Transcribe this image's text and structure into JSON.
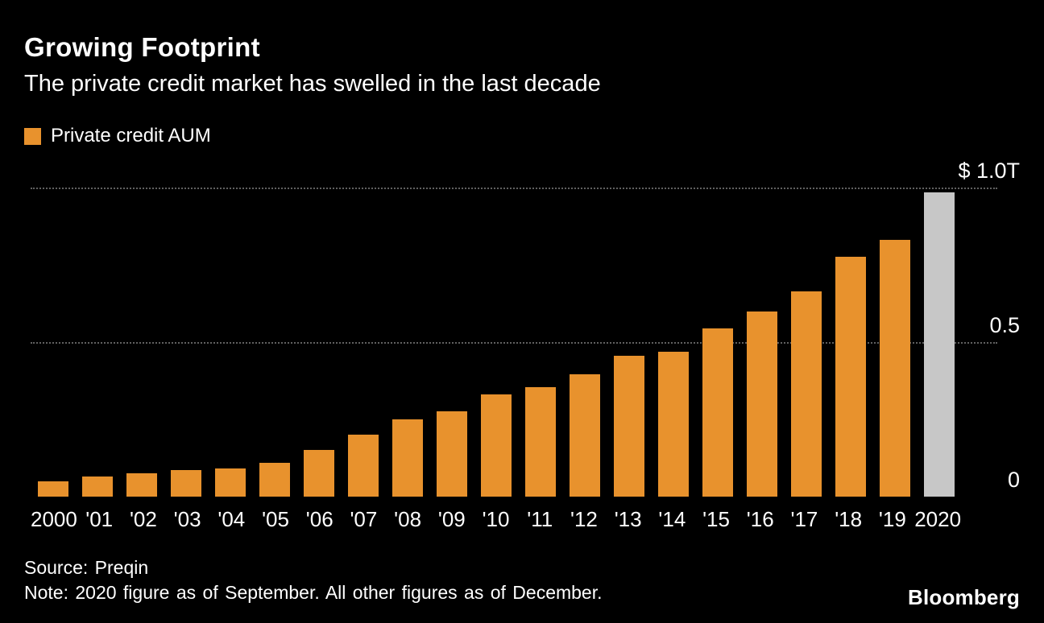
{
  "header": {
    "title": "Growing Footprint",
    "subtitle": "The private credit market has swelled in the last decade"
  },
  "legend": {
    "label": "Private credit AUM"
  },
  "chart_data": {
    "type": "bar",
    "title": "Growing Footprint",
    "subtitle": "The private credit market has swelled in the last decade",
    "unit": "trillions of US dollars",
    "categories": [
      "2000",
      "'01",
      "'02",
      "'03",
      "'04",
      "'05",
      "'06",
      "'07",
      "'08",
      "'09",
      "'10",
      "'11",
      "'12",
      "'13",
      "'14",
      "'15",
      "'16",
      "'17",
      "'18",
      "'19",
      "2020"
    ],
    "values": [
      0.05,
      0.065,
      0.075,
      0.085,
      0.09,
      0.11,
      0.15,
      0.2,
      0.25,
      0.275,
      0.33,
      0.355,
      0.395,
      0.455,
      0.47,
      0.545,
      0.6,
      0.665,
      0.775,
      0.83,
      0.985
    ],
    "highlight_index": 20,
    "ylim": [
      0,
      1.1
    ],
    "yticks": [
      {
        "value": 1.0,
        "label": "$ 1.0T"
      },
      {
        "value": 0.5,
        "label": "0.5"
      },
      {
        "value": 0,
        "label": "0"
      }
    ],
    "grid": "horizontal dotted lines at 0.5 and 1.0",
    "legend": [
      "Private credit AUM"
    ],
    "legend_position": "top-left"
  },
  "footer": {
    "source": "Source: Preqin",
    "note": "Note: 2020 figure as of September. All other figures as of December.",
    "brand": "Bloomberg"
  },
  "colors": {
    "background": "#000000",
    "bar": "#E8922D",
    "bar_highlight": "#C7C7C7",
    "grid": "#606060",
    "text": "#FFFFFF"
  }
}
